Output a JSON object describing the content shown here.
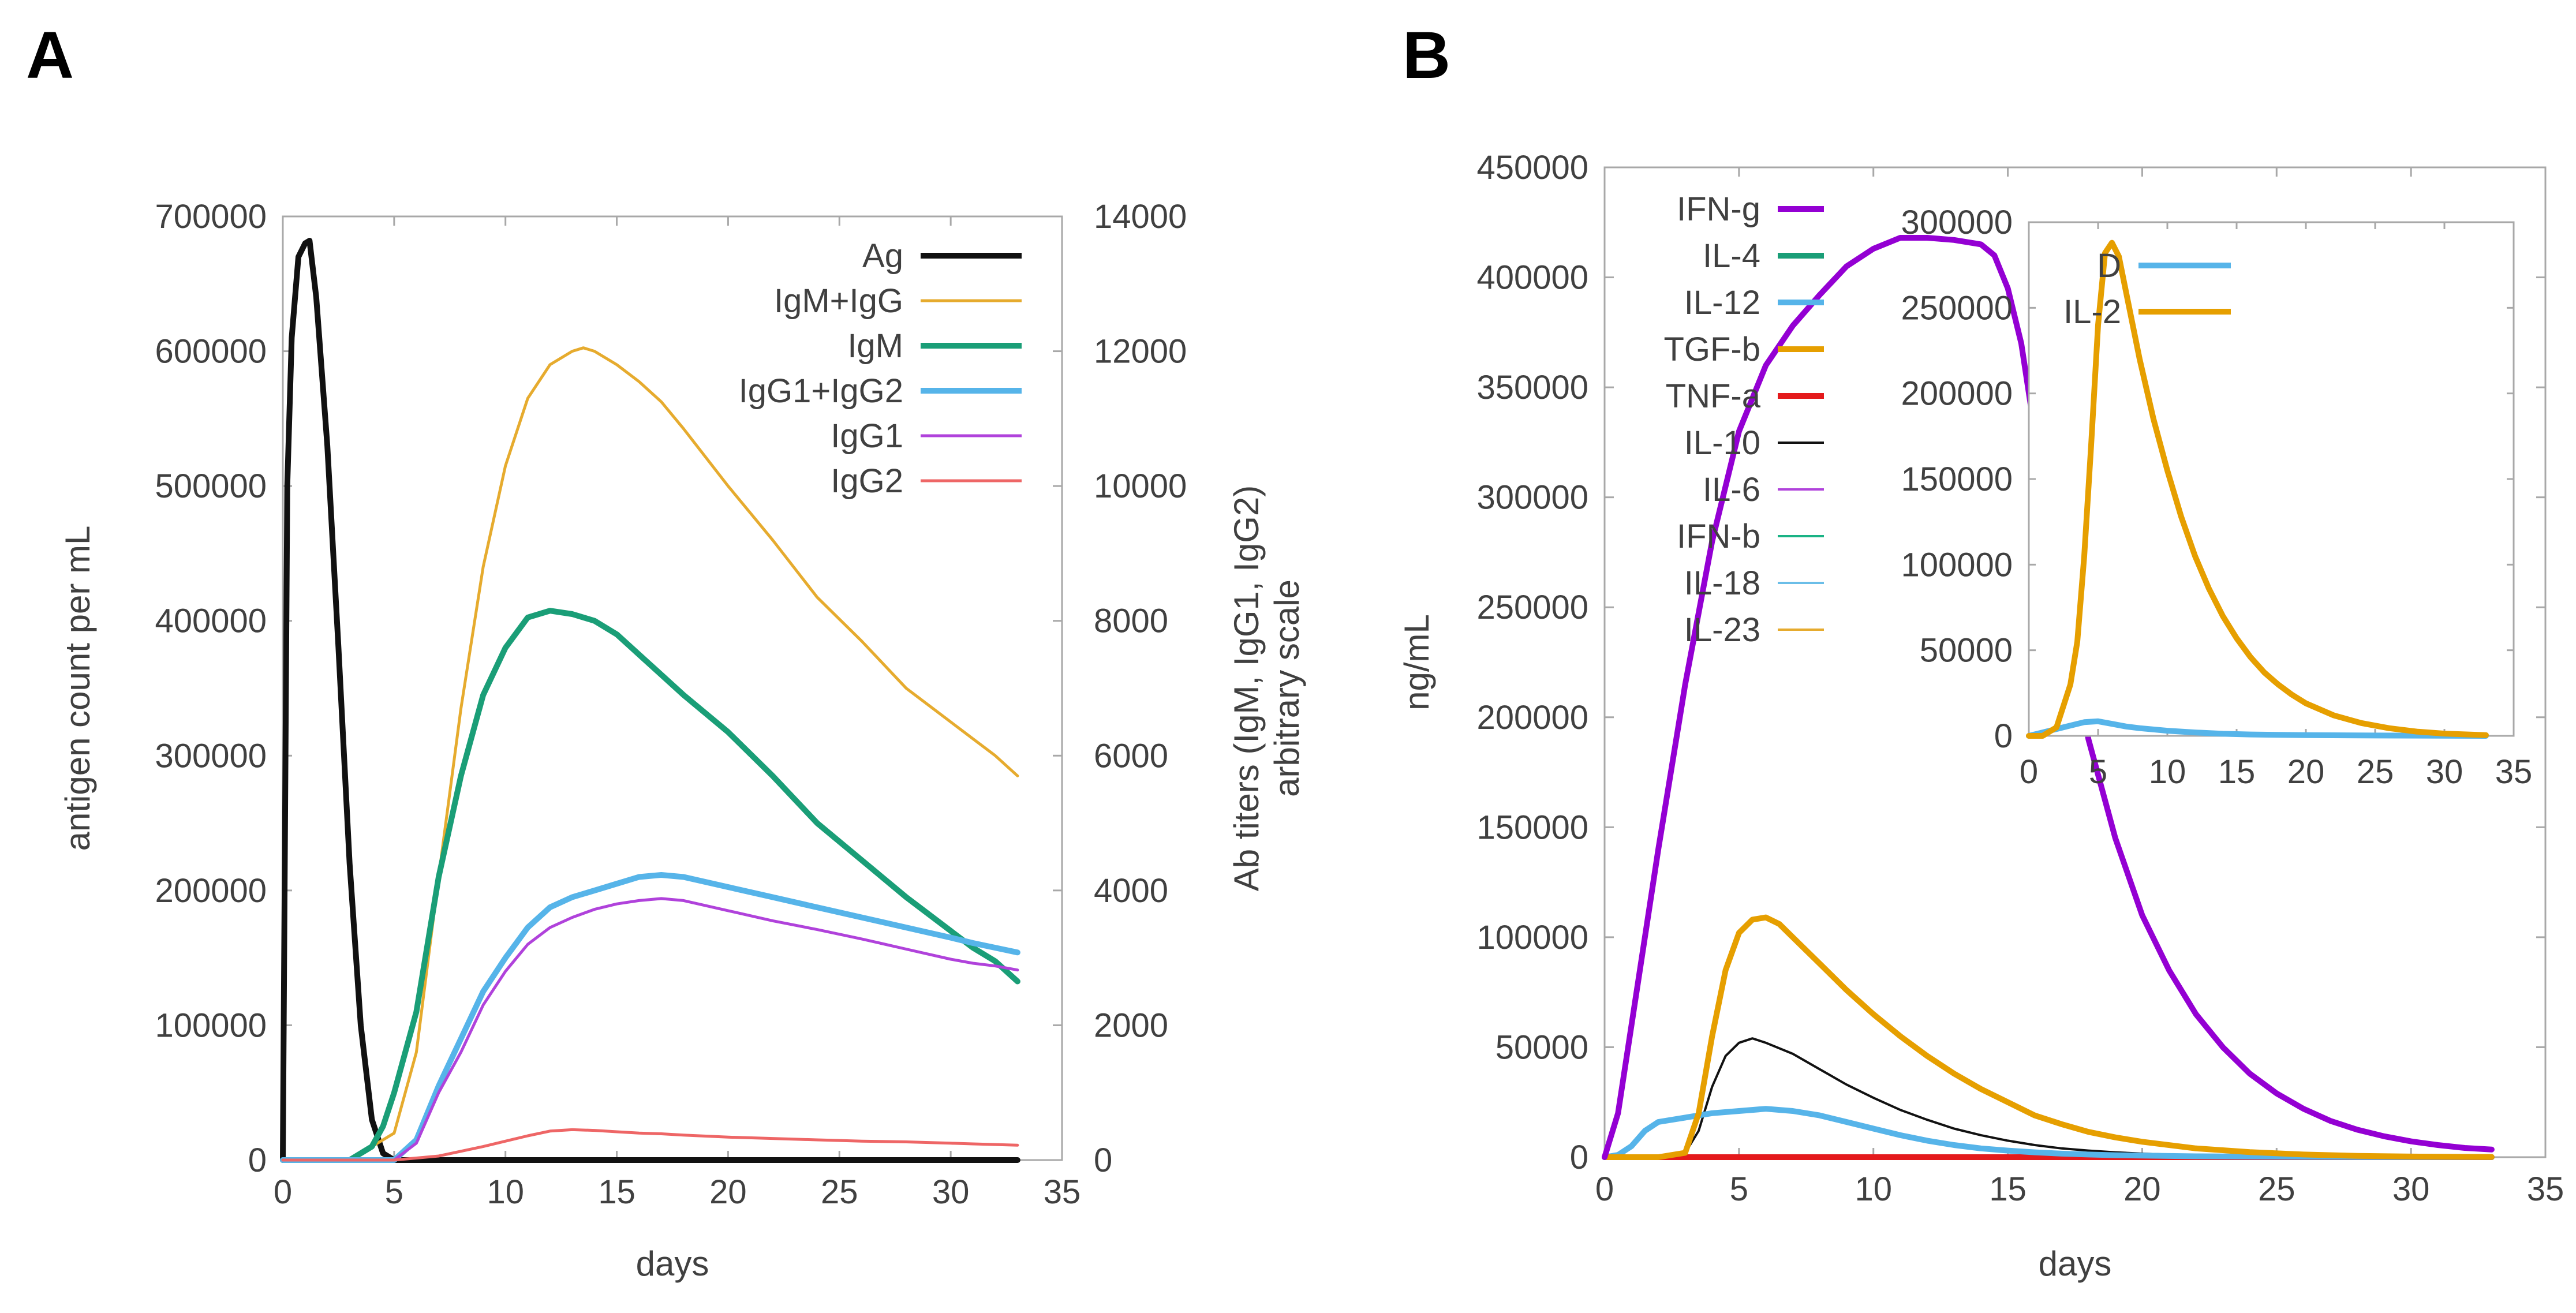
{
  "chart_data": [
    {
      "panel": "A",
      "type": "line",
      "xlabel": "days",
      "ylabel": "antigen count per mL",
      "y2label": [
        "Ab titers (IgM, IgG1, IgG2)",
        "arbitrary scale"
      ],
      "xlim": [
        0,
        35
      ],
      "ylim": [
        0,
        700000
      ],
      "y2lim": [
        0,
        14000
      ],
      "x_ticks": [
        "0",
        "5",
        "10",
        "15",
        "20",
        "25",
        "30",
        "35"
      ],
      "y_ticks": [
        "0",
        "100000",
        "200000",
        "300000",
        "400000",
        "500000",
        "600000",
        "700000"
      ],
      "y2_ticks": [
        "0",
        "2000",
        "4000",
        "6000",
        "8000",
        "10000",
        "12000",
        "14000"
      ],
      "legend_position": "top-right",
      "series": [
        {
          "name": "Ag",
          "color": "#111111",
          "axis": "y1",
          "width": 10,
          "x": [
            0,
            0.2,
            0.4,
            0.7,
            1.0,
            1.2,
            1.5,
            2.0,
            2.5,
            3.0,
            3.5,
            4.0,
            4.5,
            5.0,
            33
          ],
          "y": [
            0,
            500000,
            610000,
            670000,
            680000,
            682000,
            640000,
            530000,
            380000,
            220000,
            100000,
            30000,
            5000,
            0,
            0
          ]
        },
        {
          "name": "IgM+IgG",
          "color": "#e6ab2e",
          "axis": "y2",
          "width": 5,
          "x": [
            0,
            3,
            4,
            5,
            6,
            7,
            8,
            9,
            10,
            11,
            12,
            13,
            13.5,
            14,
            15,
            16,
            17,
            18,
            20,
            22,
            24,
            26,
            28,
            30,
            31,
            32,
            33
          ],
          "y": [
            0,
            0,
            200,
            400,
            1600,
            4200,
            6700,
            8800,
            10300,
            11300,
            11800,
            12000,
            12050,
            12000,
            11800,
            11550,
            11250,
            10850,
            10000,
            9200,
            8350,
            7700,
            7000,
            6500,
            6250,
            6000,
            5700
          ]
        },
        {
          "name": "IgM",
          "color": "#1a9e77",
          "axis": "y2",
          "width": 10,
          "x": [
            0,
            3,
            4,
            4.5,
            5,
            6,
            7,
            8,
            9,
            10,
            11,
            12,
            13,
            14,
            15,
            16,
            17,
            18,
            20,
            22,
            24,
            26,
            28,
            30,
            31,
            32,
            33
          ],
          "y": [
            0,
            0,
            200,
            500,
            1000,
            2200,
            4200,
            5700,
            6900,
            7600,
            8050,
            8150,
            8100,
            8000,
            7800,
            7500,
            7200,
            6900,
            6350,
            5700,
            5000,
            4450,
            3900,
            3400,
            3150,
            2950,
            2650
          ]
        },
        {
          "name": "IgG1+IgG2",
          "color": "#56b4e9",
          "axis": "y2",
          "width": 10,
          "x": [
            0,
            5,
            6,
            7,
            8,
            9,
            10,
            11,
            12,
            13,
            14,
            15,
            16,
            17,
            18,
            20,
            22,
            24,
            26,
            28,
            30,
            31,
            32,
            33
          ],
          "y": [
            0,
            0,
            300,
            1100,
            1800,
            2500,
            3000,
            3450,
            3750,
            3900,
            4000,
            4100,
            4200,
            4230,
            4200,
            4050,
            3900,
            3750,
            3600,
            3450,
            3300,
            3220,
            3150,
            3080
          ]
        },
        {
          "name": "IgG1",
          "color": "#b042db",
          "axis": "y2",
          "width": 5,
          "x": [
            0,
            5,
            6,
            7,
            8,
            9,
            10,
            11,
            12,
            13,
            14,
            15,
            16,
            17,
            18,
            20,
            22,
            24,
            26,
            28,
            30,
            31,
            32,
            33
          ],
          "y": [
            0,
            0,
            250,
            1000,
            1600,
            2300,
            2800,
            3200,
            3450,
            3600,
            3720,
            3800,
            3850,
            3880,
            3850,
            3700,
            3550,
            3420,
            3280,
            3130,
            2980,
            2920,
            2880,
            2820
          ]
        },
        {
          "name": "IgG2",
          "color": "#ee6666",
          "axis": "y2",
          "width": 5,
          "x": [
            0,
            5,
            7,
            9,
            11,
            12,
            13,
            14,
            15,
            16,
            17,
            18,
            20,
            22,
            24,
            26,
            28,
            30,
            31,
            32,
            33
          ],
          "y": [
            0,
            0,
            60,
            200,
            360,
            430,
            450,
            440,
            420,
            400,
            390,
            370,
            340,
            320,
            300,
            280,
            270,
            250,
            240,
            230,
            220
          ]
        }
      ]
    },
    {
      "panel": "B",
      "type": "line",
      "xlabel": "days",
      "ylabel": "ng/mL",
      "xlim": [
        0,
        35
      ],
      "ylim": [
        0,
        450000
      ],
      "x_ticks": [
        "0",
        "5",
        "10",
        "15",
        "20",
        "25",
        "30",
        "35"
      ],
      "y_ticks": [
        "0",
        "50000",
        "100000",
        "150000",
        "200000",
        "250000",
        "300000",
        "350000",
        "400000",
        "450000"
      ],
      "legend_position": "top-left",
      "series": [
        {
          "name": "IFN-g",
          "color": "#9400d3",
          "width": 10,
          "x": [
            0,
            0.5,
            1,
            2,
            3,
            4,
            5,
            6,
            7,
            8,
            9,
            10,
            11,
            12,
            13,
            14,
            14.5,
            15,
            15.5,
            16,
            17,
            18,
            19,
            20,
            21,
            22,
            23,
            24,
            25,
            26,
            27,
            28,
            29,
            30,
            31,
            32,
            33
          ],
          "y": [
            0,
            20000,
            60000,
            140000,
            215000,
            280000,
            330000,
            360000,
            378000,
            392000,
            405000,
            413000,
            418000,
            418000,
            417000,
            415000,
            410000,
            395000,
            370000,
            330000,
            255000,
            190000,
            145000,
            110000,
            85000,
            65000,
            50000,
            38000,
            29000,
            22000,
            16500,
            12500,
            9500,
            7200,
            5500,
            4200,
            3500
          ]
        },
        {
          "name": "IL-4",
          "color": "#1a9e77",
          "width": 10,
          "x": [
            0,
            33
          ],
          "y": [
            0,
            0
          ]
        },
        {
          "name": "IL-12",
          "color": "#56b4e9",
          "width": 10,
          "x": [
            0,
            0.5,
            1,
            1.5,
            2,
            3,
            4,
            5,
            6,
            7,
            8,
            9,
            10,
            11,
            12,
            13,
            14,
            15,
            16,
            17,
            18,
            19,
            20,
            22,
            24,
            26,
            28,
            30,
            33
          ],
          "y": [
            0,
            1000,
            5000,
            12000,
            16000,
            18000,
            20000,
            21000,
            22000,
            21000,
            19000,
            16000,
            13000,
            10000,
            7500,
            5500,
            4000,
            3000,
            2200,
            1600,
            1200,
            900,
            700,
            400,
            250,
            150,
            100,
            60,
            40
          ]
        },
        {
          "name": "TGF-b",
          "color": "#e69f00",
          "width": 10,
          "x": [
            0,
            2,
            3,
            3.5,
            4,
            4.5,
            5,
            5.5,
            6,
            6.5,
            7,
            8,
            9,
            10,
            11,
            12,
            13,
            14,
            15,
            16,
            17,
            18,
            19,
            20,
            22,
            24,
            26,
            28,
            30,
            33
          ],
          "y": [
            0,
            0,
            2000,
            20000,
            55000,
            85000,
            102000,
            108000,
            109000,
            106000,
            100000,
            88000,
            76000,
            65000,
            55000,
            46000,
            38000,
            31000,
            25000,
            19000,
            15000,
            11500,
            9000,
            7000,
            4000,
            2300,
            1200,
            600,
            300,
            100
          ]
        },
        {
          "name": "TNF-a",
          "color": "#e41a1c",
          "width": 10,
          "x": [
            0,
            33
          ],
          "y": [
            0,
            0
          ]
        },
        {
          "name": "IL-10",
          "color": "#111111",
          "width": 4,
          "x": [
            0,
            2,
            3,
            3.5,
            4,
            4.5,
            5,
            5.5,
            6,
            7,
            8,
            9,
            10,
            11,
            12,
            13,
            14,
            15,
            16,
            17,
            18,
            19,
            20,
            22,
            24,
            26,
            28,
            33
          ],
          "y": [
            0,
            0,
            2000,
            12000,
            32000,
            46000,
            52000,
            54000,
            52000,
            47000,
            40000,
            33000,
            27000,
            21500,
            17000,
            13000,
            10000,
            7500,
            5500,
            4000,
            3000,
            2200,
            1600,
            800,
            400,
            200,
            100,
            0
          ]
        },
        {
          "name": "IL-6",
          "color": "#b042db",
          "width": 4,
          "x": [
            0,
            33
          ],
          "y": [
            0,
            0
          ]
        },
        {
          "name": "IFN-b",
          "color": "#1ab385",
          "width": 4,
          "x": [
            0,
            33
          ],
          "y": [
            0,
            0
          ]
        },
        {
          "name": "IL-18",
          "color": "#6bbee8",
          "width": 4,
          "x": [
            0,
            33
          ],
          "y": [
            0,
            0
          ]
        },
        {
          "name": "IL-23",
          "color": "#e6ab2e",
          "width": 4,
          "x": [
            0,
            33
          ],
          "y": [
            0,
            0
          ]
        }
      ],
      "inset": {
        "xlim": [
          0,
          35
        ],
        "ylim": [
          0,
          300000
        ],
        "x_ticks": [
          "0",
          "5",
          "10",
          "15",
          "20",
          "25",
          "30",
          "35"
        ],
        "y_ticks": [
          "0",
          "50000",
          "100000",
          "150000",
          "200000",
          "250000",
          "300000"
        ],
        "series": [
          {
            "name": "D",
            "color": "#56b4e9",
            "width": 10,
            "x": [
              0,
              1,
              2,
              3,
              4,
              5,
              6,
              7,
              8,
              10,
              12,
              14,
              16,
              20,
              25,
              33
            ],
            "y": [
              0,
              2000,
              4000,
              6000,
              8000,
              8500,
              7000,
              5500,
              4500,
              3000,
              2000,
              1200,
              800,
              400,
              200,
              0
            ]
          },
          {
            "name": "IL-2",
            "color": "#e69f00",
            "width": 10,
            "x": [
              0,
              1,
              2,
              3,
              3.5,
              4,
              4.5,
              5,
              5.5,
              6,
              6.5,
              7,
              8,
              9,
              10,
              11,
              12,
              13,
              14,
              15,
              16,
              17,
              18,
              19,
              20,
              22,
              24,
              26,
              28,
              30,
              33
            ],
            "y": [
              0,
              0,
              5000,
              30000,
              55000,
              105000,
              170000,
              240000,
              282000,
              288000,
              280000,
              260000,
              220000,
              185000,
              155000,
              128000,
              105000,
              86000,
              70000,
              57000,
              46000,
              37000,
              30000,
              24000,
              19000,
              12000,
              7500,
              4500,
              2500,
              1300,
              400
            ]
          }
        ]
      }
    }
  ],
  "panel_labels": {
    "a": "A",
    "b": "B"
  }
}
